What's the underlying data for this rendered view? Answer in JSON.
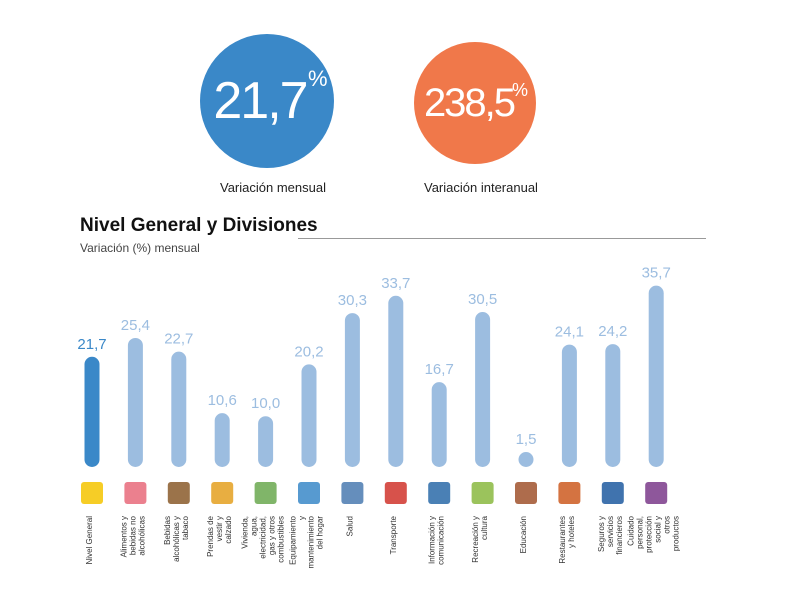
{
  "kpis": [
    {
      "value": "21,7",
      "unit": "%",
      "label": "Variación mensual",
      "color": "#3a88c8"
    },
    {
      "value": "238,5",
      "unit": "%",
      "label": "Variación interanual",
      "color": "#f0784a"
    }
  ],
  "chart_data": {
    "type": "bar",
    "title": "Nivel General y Divisiones",
    "subtitle": "Variación (%) mensual",
    "categories": [
      "Nivel General",
      "Alimentos y bebidas no alcohólicas",
      "Bebidas alcohólicas y tabaco",
      "Prendas de vestir y calzado",
      "Vivienda, agua, electricidad, gas y otros combustibles",
      "Equipamiento y mantenimiento del hogar",
      "Salud",
      "Transporte",
      "Información y comunicación",
      "Recreación y cultura",
      "Educación",
      "Restaurantes y hoteles",
      "Seguros y servicios financieros",
      "Cuidado personal, protección social y otros productos"
    ],
    "values": [
      21.7,
      25.4,
      22.7,
      10.6,
      10.0,
      20.2,
      30.3,
      33.7,
      16.7,
      30.5,
      1.5,
      24.1,
      24.2,
      35.7
    ],
    "value_labels": [
      "21,7",
      "25,4",
      "22,7",
      "10,6",
      "10,0",
      "20,2",
      "30,3",
      "33,7",
      "16,7",
      "30,5",
      "1,5",
      "24,1",
      "24,2",
      "35,7"
    ],
    "colors": {
      "highlight": "#3a88c8",
      "bar": "#9cbde0",
      "highlight_label": "#3a88c8",
      "label": "#9cbde0"
    },
    "grid": false,
    "legend": "none"
  }
}
